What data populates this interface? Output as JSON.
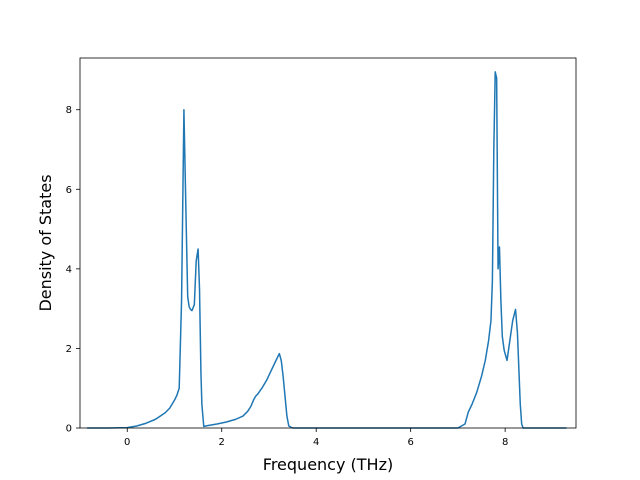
{
  "chart_data": {
    "type": "line",
    "title": "",
    "xlabel": "Frequency (THz)",
    "ylabel": "Density of States",
    "xlim": [
      -1.0,
      9.5
    ],
    "ylim": [
      0,
      9.3
    ],
    "xticks": [
      0,
      2,
      4,
      6,
      8
    ],
    "yticks": [
      0,
      2,
      4,
      6,
      8
    ],
    "xtick_labels": [
      "0",
      "2",
      "4",
      "6",
      "8"
    ],
    "ytick_labels": [
      "0",
      "2",
      "4",
      "6",
      "8"
    ],
    "grid": false,
    "legend": false,
    "line_color": "#1f77b4",
    "series": [
      {
        "x": [
          -0.85,
          -0.4,
          0.0,
          0.2,
          0.4,
          0.6,
          0.8,
          0.9,
          1.0,
          1.05,
          1.1,
          1.15,
          1.2,
          1.25,
          1.28,
          1.31,
          1.34,
          1.37,
          1.42,
          1.46,
          1.5,
          1.53,
          1.56,
          1.58,
          1.62,
          1.66,
          1.7,
          1.9,
          2.1,
          2.3,
          2.45,
          2.55,
          2.62,
          2.68,
          2.72,
          2.76,
          2.85,
          2.95,
          3.05,
          3.15,
          3.22,
          3.26,
          3.3,
          3.34,
          3.38,
          3.42,
          3.5,
          4.0,
          5.0,
          6.0,
          7.0,
          7.15,
          7.22,
          7.3,
          7.4,
          7.5,
          7.58,
          7.65,
          7.7,
          7.73,
          7.76,
          7.79,
          7.82,
          7.85,
          7.88,
          7.91,
          7.94,
          7.98,
          8.04,
          8.1,
          8.16,
          8.22,
          8.26,
          8.29,
          8.32,
          8.35,
          8.38,
          8.42,
          8.5,
          9.0,
          9.3
        ],
        "y": [
          0,
          0,
          0.01,
          0.05,
          0.12,
          0.22,
          0.38,
          0.5,
          0.7,
          0.82,
          1.0,
          3.2,
          8.0,
          5.0,
          3.3,
          3.05,
          2.98,
          2.95,
          3.1,
          4.2,
          4.5,
          3.5,
          1.4,
          0.6,
          0.04,
          0.05,
          0.06,
          0.1,
          0.15,
          0.22,
          0.3,
          0.42,
          0.55,
          0.72,
          0.8,
          0.85,
          1.0,
          1.2,
          1.45,
          1.7,
          1.87,
          1.7,
          1.3,
          0.8,
          0.3,
          0.05,
          0,
          0,
          0,
          0,
          0,
          0.1,
          0.4,
          0.6,
          0.9,
          1.3,
          1.7,
          2.2,
          2.7,
          3.7,
          7.0,
          8.95,
          8.8,
          4.0,
          4.55,
          3.2,
          2.3,
          1.95,
          1.7,
          2.2,
          2.7,
          2.98,
          2.4,
          1.5,
          0.6,
          0.1,
          0,
          0,
          0,
          0,
          0
        ]
      }
    ]
  }
}
